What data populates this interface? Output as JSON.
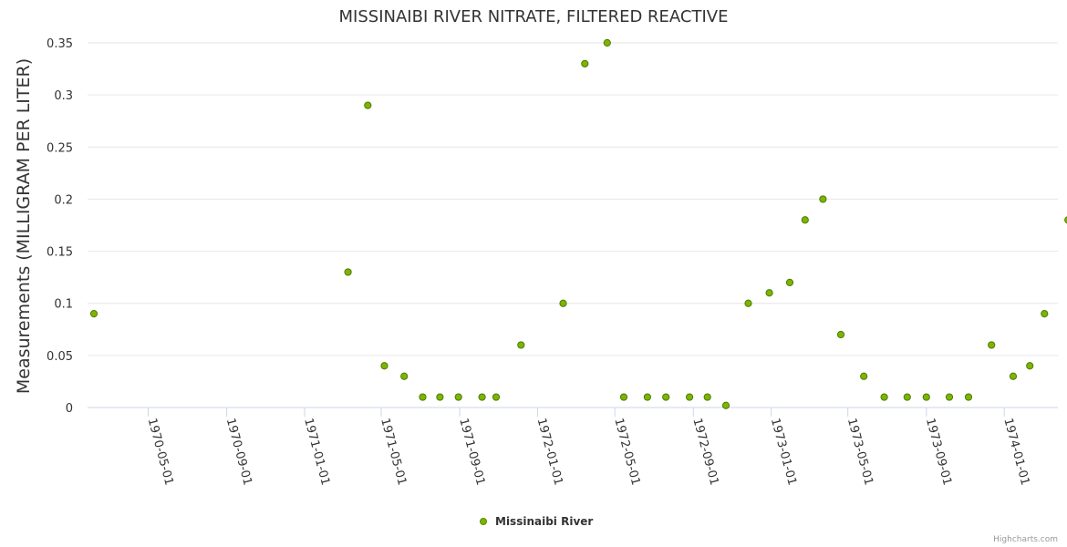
{
  "chart_data": {
    "type": "scatter",
    "title": "MISSINAIBI RIVER NITRATE, FILTERED REACTIVE",
    "xlabel": "",
    "ylabel": "Measurements (MILLIGRAM PER LITER)",
    "ylim": [
      0,
      0.35
    ],
    "yticks": [
      "0",
      "0.05",
      "0.1",
      "0.15",
      "0.2",
      "0.25",
      "0.3",
      "0.35"
    ],
    "xlim": [
      "1970-01-26",
      "1974-03-26"
    ],
    "xticks": [
      "1970-05-01",
      "1970-09-01",
      "1971-01-01",
      "1971-05-01",
      "1971-09-01",
      "1972-01-01",
      "1972-05-01",
      "1972-09-01",
      "1973-01-01",
      "1973-05-01",
      "1973-09-01",
      "1974-01-01"
    ],
    "grid": true,
    "legend_position": "bottom-center",
    "series": [
      {
        "name": "Missinaibi River",
        "color": "#7cb5ec",
        "fill": "#7cb500",
        "points": [
          {
            "date": "1970-02-05",
            "value": 0.09
          },
          {
            "date": "1971-03-10",
            "value": 0.13
          },
          {
            "date": "1971-04-10",
            "value": 0.29
          },
          {
            "date": "1971-05-06",
            "value": 0.04
          },
          {
            "date": "1971-06-06",
            "value": 0.03
          },
          {
            "date": "1971-07-05",
            "value": 0.01
          },
          {
            "date": "1971-08-01",
            "value": 0.01
          },
          {
            "date": "1971-08-30",
            "value": 0.01
          },
          {
            "date": "1971-10-06",
            "value": 0.01
          },
          {
            "date": "1971-10-28",
            "value": 0.01
          },
          {
            "date": "1971-12-06",
            "value": 0.06
          },
          {
            "date": "1972-02-10",
            "value": 0.1
          },
          {
            "date": "1972-03-15",
            "value": 0.33
          },
          {
            "date": "1972-04-19",
            "value": 0.35
          },
          {
            "date": "1972-05-15",
            "value": 0.01
          },
          {
            "date": "1972-06-21",
            "value": 0.01
          },
          {
            "date": "1972-07-20",
            "value": 0.01
          },
          {
            "date": "1972-08-26",
            "value": 0.01
          },
          {
            "date": "1972-09-23",
            "value": 0.01
          },
          {
            "date": "1972-10-22",
            "value": 0.002
          },
          {
            "date": "1972-11-26",
            "value": 0.1
          },
          {
            "date": "1972-12-29",
            "value": 0.11
          },
          {
            "date": "1973-01-30",
            "value": 0.12
          },
          {
            "date": "1973-02-23",
            "value": 0.18
          },
          {
            "date": "1973-03-23",
            "value": 0.2
          },
          {
            "date": "1973-04-20",
            "value": 0.07
          },
          {
            "date": "1973-05-26",
            "value": 0.03
          },
          {
            "date": "1973-06-27",
            "value": 0.01
          },
          {
            "date": "1973-08-02",
            "value": 0.01
          },
          {
            "date": "1973-09-01",
            "value": 0.01
          },
          {
            "date": "1973-10-07",
            "value": 0.01
          },
          {
            "date": "1973-11-06",
            "value": 0.01
          },
          {
            "date": "1973-12-12",
            "value": 0.06
          },
          {
            "date": "1974-01-15",
            "value": 0.03
          },
          {
            "date": "1974-02-10",
            "value": 0.04
          },
          {
            "date": "1974-03-05",
            "value": 0.09
          },
          {
            "date": "1974-04-11",
            "value": 0.18
          }
        ]
      }
    ]
  },
  "credit": "Highcharts.com"
}
